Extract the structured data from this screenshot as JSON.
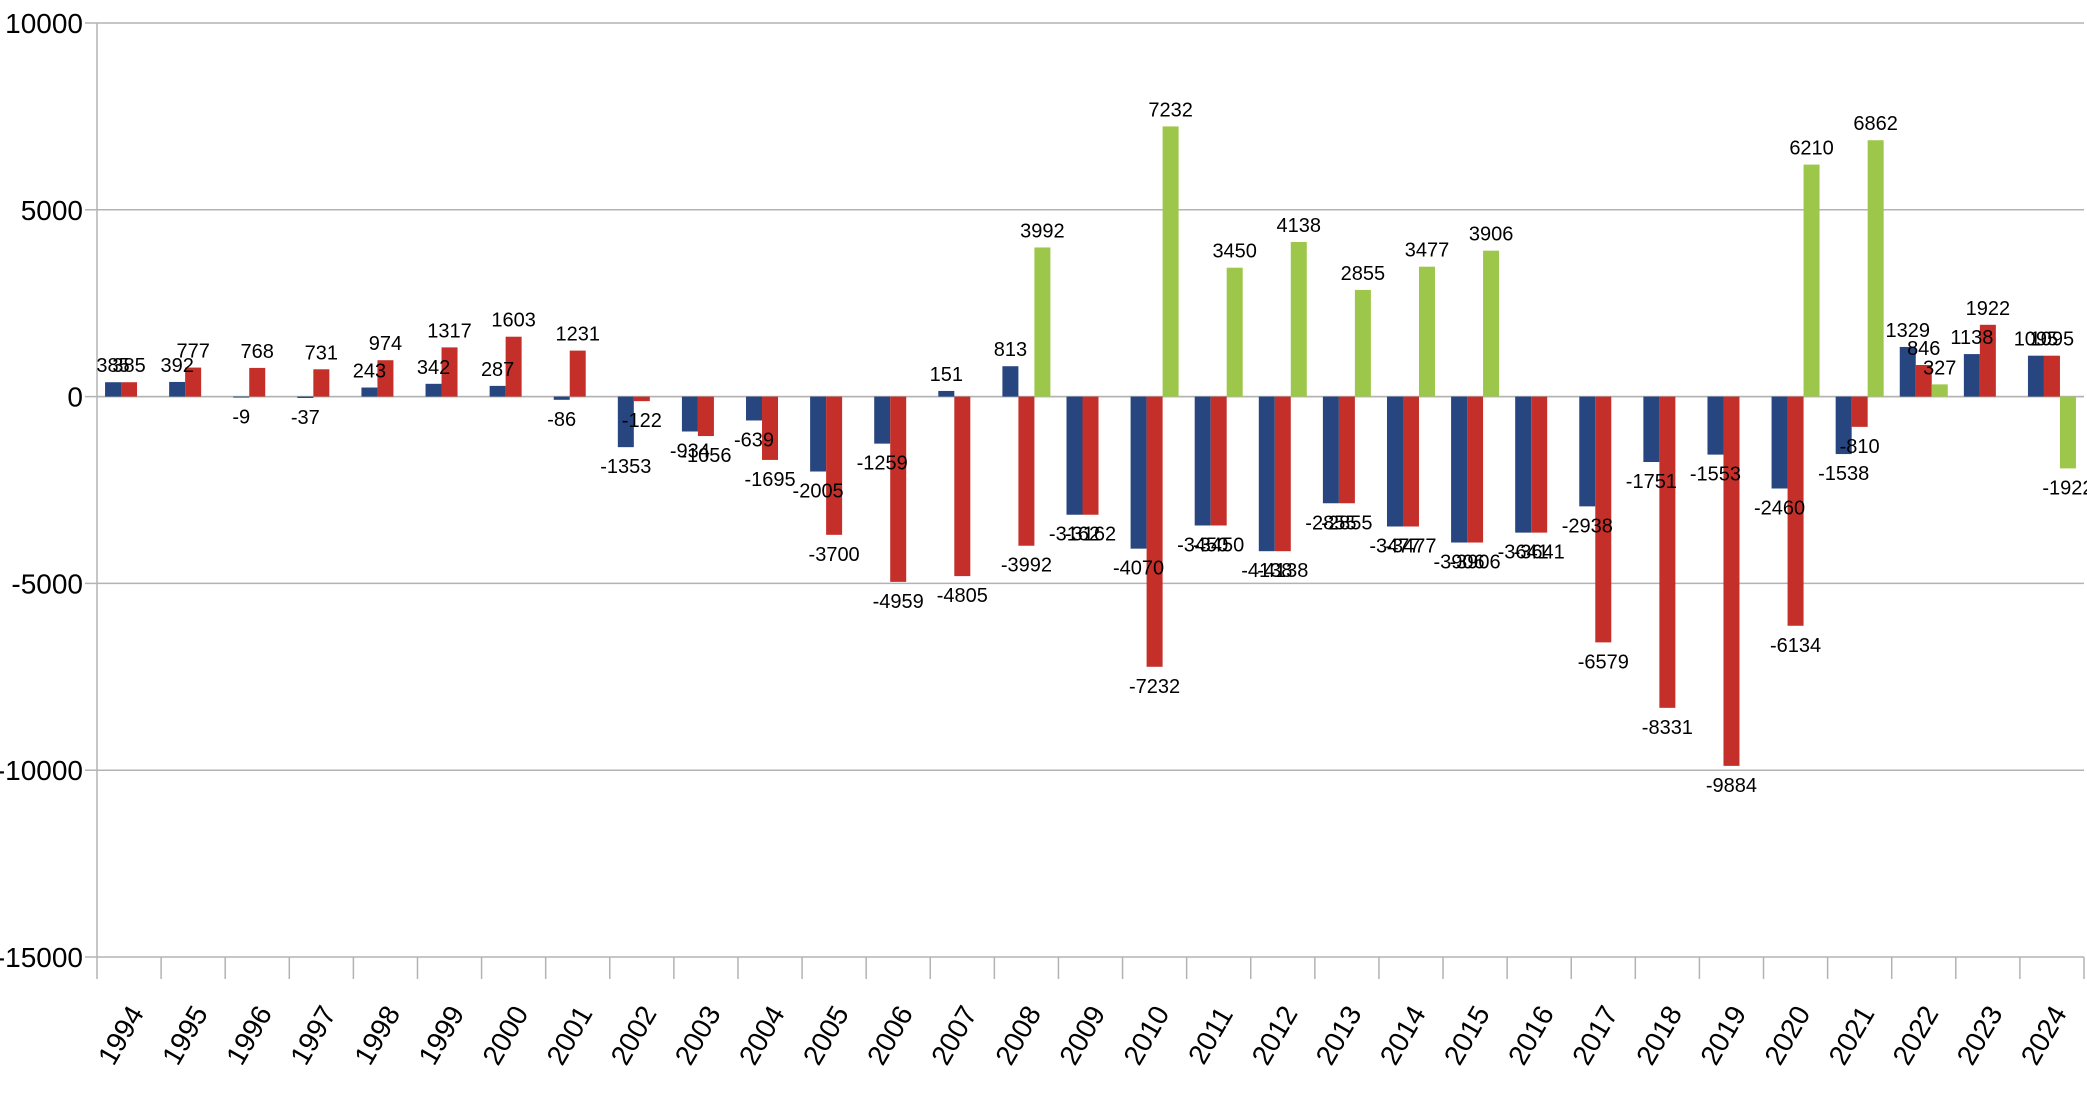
{
  "chart_data": {
    "type": "bar",
    "title": "",
    "xlabel": "",
    "ylabel": "",
    "ylim": [
      -15000,
      10000
    ],
    "yticks": [
      10000,
      5000,
      0,
      -5000,
      -10000,
      -15000
    ],
    "grid": true,
    "legend": "none",
    "categories": [
      "1994",
      "1995",
      "1996",
      "1997",
      "1998",
      "1999",
      "2000",
      "2001",
      "2002",
      "2003",
      "2004",
      "2005",
      "2006",
      "2007",
      "2008",
      "2009",
      "2010",
      "2011",
      "2012",
      "2013",
      "2014",
      "2015",
      "2016",
      "2017",
      "2018",
      "2019",
      "2020",
      "2021",
      "2022",
      "2023",
      "2024"
    ],
    "series": [
      {
        "color": "#27457f",
        "values": [
          385,
          392,
          -9,
          -37,
          243,
          342,
          287,
          -86,
          -1353,
          -934,
          -639,
          -2005,
          -1259,
          151,
          813,
          -3162,
          -4070,
          -3450,
          -4138,
          -2855,
          -3477,
          -3906,
          -3641,
          -2938,
          -1751,
          -1553,
          -2460,
          -1538,
          1329,
          1138,
          1095
        ]
      },
      {
        "color": "#c42f2a",
        "values": [
          385,
          777,
          768,
          731,
          974,
          1317,
          1603,
          1231,
          -122,
          -1056,
          -1695,
          -3700,
          -4959,
          -4805,
          -3992,
          -3162,
          -7232,
          -3450,
          -4138,
          -2855,
          -3477,
          -3906,
          -3641,
          -6579,
          -8331,
          -9884,
          -6134,
          -810,
          846,
          1922,
          1095
        ]
      },
      {
        "color": "#9dc74a",
        "values": [
          null,
          null,
          null,
          null,
          null,
          null,
          null,
          null,
          null,
          null,
          null,
          null,
          null,
          null,
          3992,
          null,
          7232,
          3450,
          4138,
          2855,
          3477,
          3906,
          null,
          null,
          null,
          null,
          6210,
          6862,
          327,
          null,
          -1922
        ]
      }
    ]
  }
}
